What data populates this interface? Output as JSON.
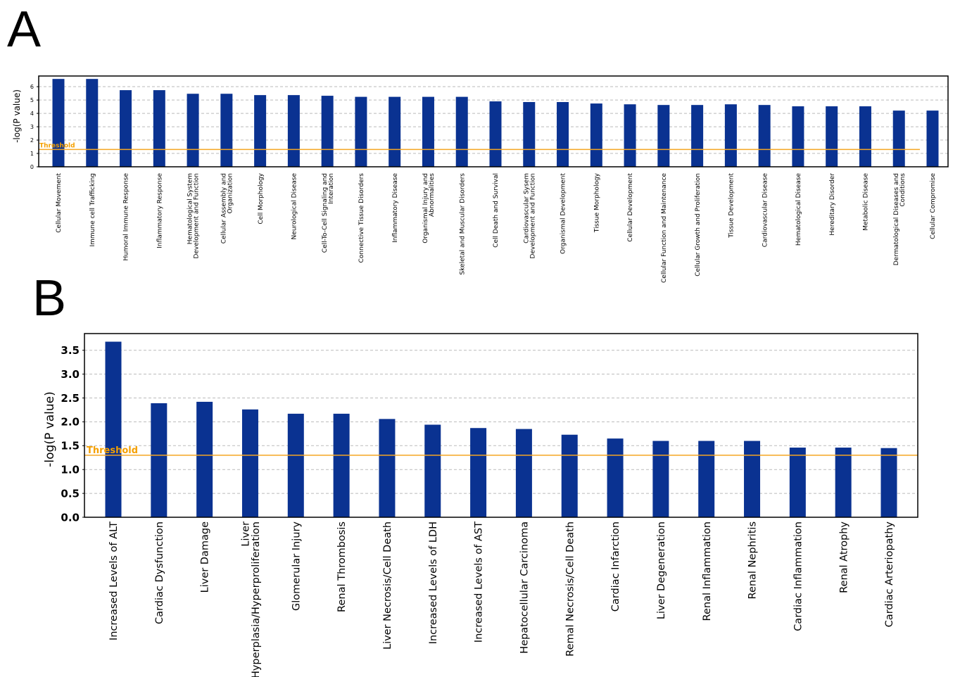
{
  "panels": [
    {
      "letter": "A"
    },
    {
      "letter": "B"
    }
  ],
  "colors": {
    "bar": "#0a3291",
    "threshold": "#f5a623",
    "grid": "#bbbbbb",
    "threshold_text": "#f5a000"
  },
  "chart_data": [
    {
      "type": "bar",
      "title": "",
      "xlabel": "",
      "ylabel": "-log(P value)",
      "ylim": [
        0,
        6.8
      ],
      "yticks": [
        0,
        1,
        2,
        3,
        4,
        5,
        6
      ],
      "ytick_labels": [
        "0",
        "1",
        "2",
        "3",
        "4",
        "5",
        "6"
      ],
      "grid": true,
      "threshold": {
        "label": "Threshold",
        "value": 1.3
      },
      "categories": [
        "Cellular Movement",
        "Immune cell Trafficking",
        "Humoral Immune Response",
        "Inflammatory Response",
        "Hematological System\nDevelopment and Function",
        "Cellular Assembly and\nOrganization",
        "Cell Morphology",
        "Neurological Disease",
        "Cell-To-Cell Signaling and\nInteration",
        "Connective Tissue Disorders",
        "Inflammatory Disease",
        "Organismal Injury and\nAbnormalities",
        "Skeletal and Muscular Disorders",
        "Cell Death and Survival",
        "Cardiovascular Sysem\nDevelopment and Function",
        "Organismal Development",
        "Tissue Morphology",
        "Cellular Development",
        "Cellular Function and Maintenance",
        "Cellular Growth and Proliferation",
        "Tissue Development",
        "Cardiovascular Disease",
        "Hematological Disease",
        "Hereditary Disorder",
        "Metabolic Disease",
        "Dermatological Diseases and\nConditions",
        "Cellular Compromise"
      ],
      "values": [
        6.58,
        6.58,
        5.74,
        5.74,
        5.47,
        5.47,
        5.37,
        5.37,
        5.32,
        5.24,
        5.24,
        5.24,
        5.24,
        4.9,
        4.85,
        4.85,
        4.74,
        4.68,
        4.63,
        4.63,
        4.68,
        4.63,
        4.53,
        4.53,
        4.53,
        4.21,
        4.21
      ]
    },
    {
      "type": "bar",
      "title": "",
      "xlabel": "",
      "ylabel": "-log(P value)",
      "ylim": [
        0,
        3.85
      ],
      "yticks": [
        0,
        0.5,
        1,
        1.5,
        2,
        2.5,
        3,
        3.5
      ],
      "ytick_labels": [
        "0.0",
        "0.5",
        "1.0",
        "1.5",
        "2.0",
        "2.5",
        "3.0",
        "3.5"
      ],
      "grid": true,
      "threshold": {
        "label": "Threshold",
        "value": 1.3
      },
      "categories": [
        "Increased Levels of ALT",
        "Cardiac Dysfunction",
        "Liver Damage",
        "Liver\nHyperplasia/Hyperproliferation",
        "Glomerular Injury",
        "Renal Thrombosis",
        "Liver Necrosis/Cell Death",
        "Increased Levels of LDH",
        "Increased Levels of AST",
        "Hepatocellular Carcinoma",
        "Remal Necrosis/Cell Death",
        "Cardiac Infarction",
        "Liver Degeneration",
        "Renal Inflammation",
        "Renal Nephritis",
        "Cardiac Inflammation",
        "Renal Atrophy",
        "Cardiac Arteriopathy"
      ],
      "values": [
        3.68,
        2.39,
        2.42,
        2.26,
        2.17,
        2.17,
        2.06,
        1.94,
        1.87,
        1.85,
        1.73,
        1.65,
        1.6,
        1.6,
        1.6,
        1.46,
        1.46,
        1.45
      ]
    }
  ]
}
